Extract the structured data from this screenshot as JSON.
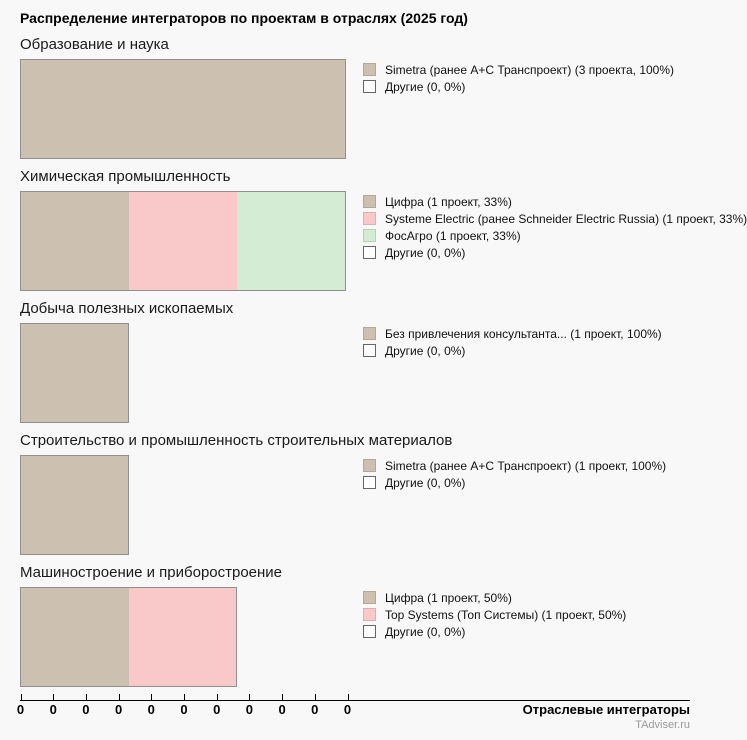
{
  "page": {
    "title": "Распределение интеграторов по проектам в отраслях (2025 год)",
    "source": "TAdviser.ru"
  },
  "colors": {
    "background": "#f8f8f8",
    "bar_border": "#909090",
    "tan": "#ccc0b1",
    "pink": "#f9c9c9",
    "green": "#d3ecd3",
    "white": "#ffffff"
  },
  "chart_data": {
    "type": "bar",
    "orientation": "horizontal-stacked",
    "unit": "projects",
    "x_axis": {
      "label": "Отраслевые интеграторы",
      "tick_labels": [
        "0",
        "0",
        "0",
        "0",
        "0",
        "0",
        "0",
        "0",
        "0",
        "0",
        "0"
      ],
      "range": [
        0,
        3
      ],
      "grid": false
    },
    "legend_position": "right-of-each-bar",
    "sections": [
      {
        "title": "Образование и наука",
        "segments": [
          {
            "name": "Simetra (ранее А+С Транспроект)",
            "projects": 3,
            "pct": 100,
            "color": "tan",
            "legend": "Simetra (ранее А+С Транспроект) (3 проекта, 100%)"
          },
          {
            "name": "Другие",
            "projects": 0,
            "pct": 0,
            "color": "white",
            "legend": "Другие (0, 0%)"
          }
        ]
      },
      {
        "title": "Химическая промышленность",
        "segments": [
          {
            "name": "Цифра",
            "projects": 1,
            "pct": 33,
            "color": "tan",
            "legend": "Цифра (1 проект, 33%)"
          },
          {
            "name": "Systeme Electric (ранее Schneider Electric Russia)",
            "projects": 1,
            "pct": 33,
            "color": "pink",
            "legend": "Systeme Electric (ранее Schneider Electric Russia) (1 проект, 33%)"
          },
          {
            "name": "ФосАгро",
            "projects": 1,
            "pct": 33,
            "color": "green",
            "legend": "ФосАгро (1 проект, 33%)"
          },
          {
            "name": "Другие",
            "projects": 0,
            "pct": 0,
            "color": "white",
            "legend": "Другие (0, 0%)"
          }
        ]
      },
      {
        "title": "Добыча полезных ископаемых",
        "segments": [
          {
            "name": "Без привлечения консультанта...",
            "projects": 1,
            "pct": 100,
            "color": "tan",
            "legend": "Без привлечения консультанта... (1 проект, 100%)"
          },
          {
            "name": "Другие",
            "projects": 0,
            "pct": 0,
            "color": "white",
            "legend": "Другие (0, 0%)"
          }
        ]
      },
      {
        "title": "Строительство и промышленность строительных материалов",
        "segments": [
          {
            "name": "Simetra (ранее А+С Транспроект)",
            "projects": 1,
            "pct": 100,
            "color": "tan",
            "legend": "Simetra (ранее А+С Транспроект) (1 проект, 100%)"
          },
          {
            "name": "Другие",
            "projects": 0,
            "pct": 0,
            "color": "white",
            "legend": "Другие (0, 0%)"
          }
        ]
      },
      {
        "title": "Машиностроение и приборостроение",
        "segments": [
          {
            "name": "Цифра",
            "projects": 1,
            "pct": 50,
            "color": "tan",
            "legend": "Цифра (1 проект, 50%)"
          },
          {
            "name": "Top Systems (Топ Системы)",
            "projects": 1,
            "pct": 50,
            "color": "pink",
            "legend": "Top Systems (Топ Системы) (1 проект, 50%)"
          },
          {
            "name": "Другие",
            "projects": 0,
            "pct": 0,
            "color": "white",
            "legend": "Другие (0, 0%)"
          }
        ]
      }
    ]
  }
}
